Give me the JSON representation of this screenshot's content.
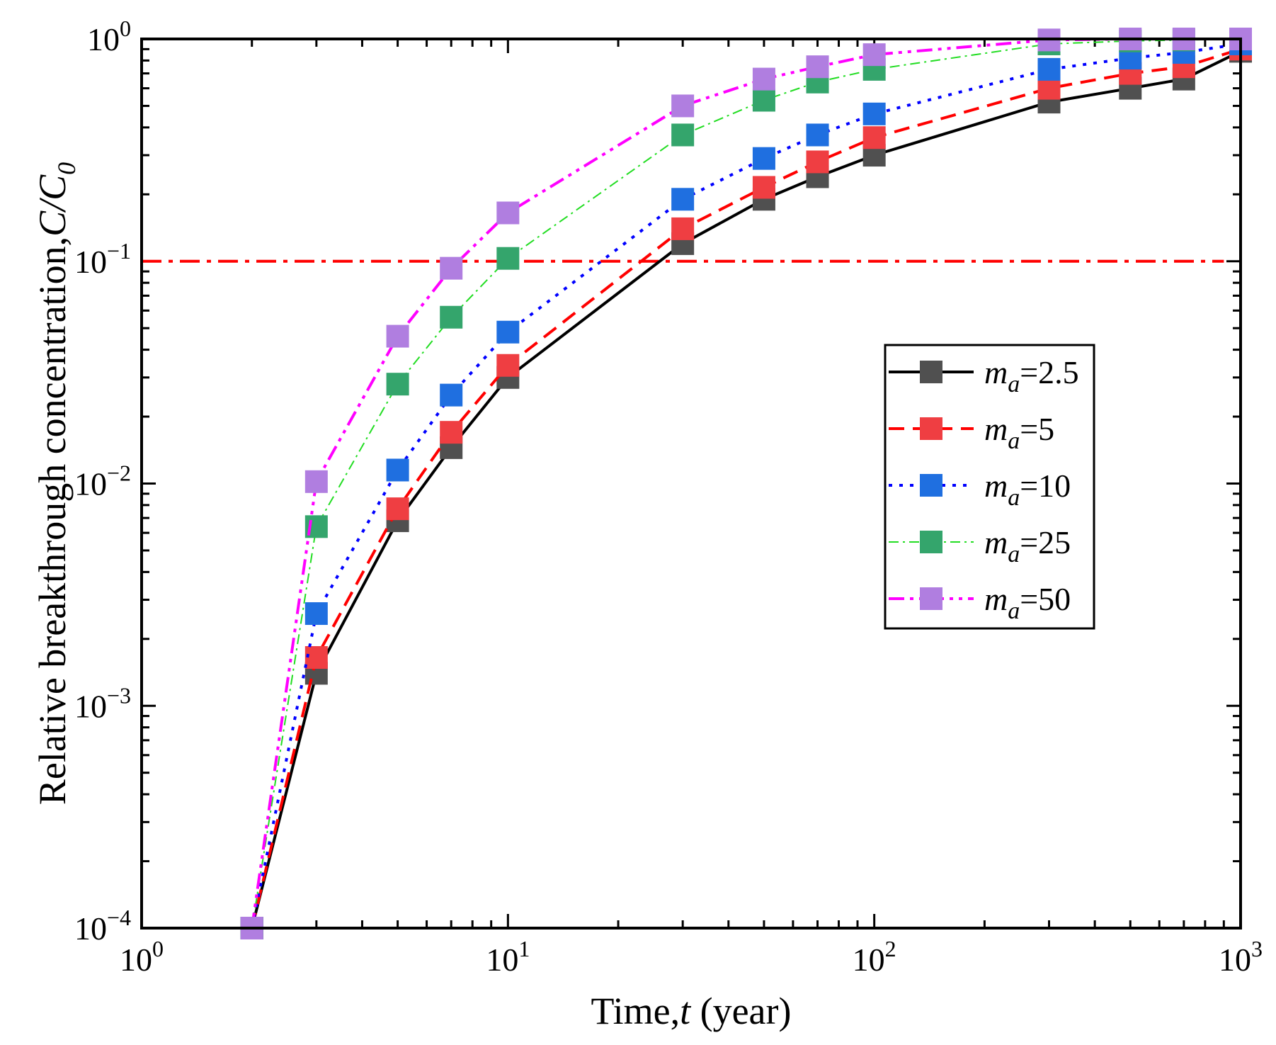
{
  "chart_data": {
    "type": "line",
    "xscale": "log",
    "yscale": "log",
    "xlim": [
      1,
      1000
    ],
    "ylim": [
      0.0001,
      1
    ],
    "xlabel": {
      "text": "Time,",
      "var": "t",
      "unit": " (year)"
    },
    "ylabel": {
      "text": "Relative breakthrough concentration,",
      "var": "C/C",
      "sub": "0"
    },
    "x_ticks": [
      {
        "value": 1,
        "base": "10",
        "exp": "0"
      },
      {
        "value": 10,
        "base": "10",
        "exp": "1"
      },
      {
        "value": 100,
        "base": "10",
        "exp": "2"
      },
      {
        "value": 1000,
        "base": "10",
        "exp": "3"
      }
    ],
    "y_ticks": [
      {
        "value": 0.0001,
        "base": "10",
        "exp": "−4"
      },
      {
        "value": 0.001,
        "base": "10",
        "exp": "−3"
      },
      {
        "value": 0.01,
        "base": "10",
        "exp": "−2"
      },
      {
        "value": 0.1,
        "base": "10",
        "exp": "−1"
      },
      {
        "value": 1,
        "base": "10",
        "exp": "0"
      }
    ],
    "reference_line": {
      "y": 0.1,
      "color": "#ff0000",
      "style": "dash-dot",
      "x_range": [
        1,
        900
      ]
    },
    "x": [
      2,
      3,
      5,
      7,
      10,
      30,
      50,
      70,
      100,
      300,
      500,
      700,
      1000
    ],
    "series": [
      {
        "name": "ma=2.5",
        "label_var": "m",
        "label_sub": "a",
        "label_val": "=2.5",
        "line_color": "#000000",
        "marker_color": "#505050",
        "dash": "solid",
        "width": 4,
        "values": [
          0.0001,
          0.0014,
          0.0068,
          0.0145,
          0.03,
          0.12,
          0.19,
          0.24,
          0.3,
          0.52,
          0.6,
          0.66,
          0.88
        ]
      },
      {
        "name": "ma=5",
        "label_var": "m",
        "label_sub": "a",
        "label_val": "=5",
        "line_color": "#ff0000",
        "marker_color": "#ef3e42",
        "dash": "dashed",
        "width": 4,
        "values": [
          0.0001,
          0.00165,
          0.0077,
          0.017,
          0.034,
          0.14,
          0.215,
          0.28,
          0.36,
          0.6,
          0.7,
          0.75,
          0.9
        ]
      },
      {
        "name": "ma=10",
        "label_var": "m",
        "label_sub": "a",
        "label_val": "=10",
        "line_color": "#0000ff",
        "marker_color": "#1f6fe0",
        "dash": "dotted",
        "width": 4,
        "values": [
          0.0001,
          0.0026,
          0.0115,
          0.025,
          0.048,
          0.19,
          0.29,
          0.37,
          0.46,
          0.73,
          0.82,
          0.87,
          0.95
        ]
      },
      {
        "name": "ma=25",
        "label_var": "m",
        "label_sub": "a",
        "label_val": "=25",
        "line_color": "#22dd22",
        "marker_color": "#34a56c",
        "dash": "dash-dot-thin",
        "width": 2,
        "values": [
          0.0001,
          0.0064,
          0.028,
          0.056,
          0.103,
          0.37,
          0.53,
          0.64,
          0.73,
          0.95,
          0.98,
          0.99,
          1.0
        ]
      },
      {
        "name": "ma=50",
        "label_var": "m",
        "label_sub": "a",
        "label_val": "=50",
        "line_color": "#ff00ff",
        "marker_color": "#b07ee0",
        "dash": "dash-dot-dot",
        "width": 4,
        "values": [
          0.0001,
          0.0102,
          0.046,
          0.093,
          0.165,
          0.5,
          0.66,
          0.75,
          0.85,
          0.99,
          1.0,
          1.0,
          1.0
        ]
      }
    ],
    "legend": {
      "position": "center-right"
    }
  }
}
